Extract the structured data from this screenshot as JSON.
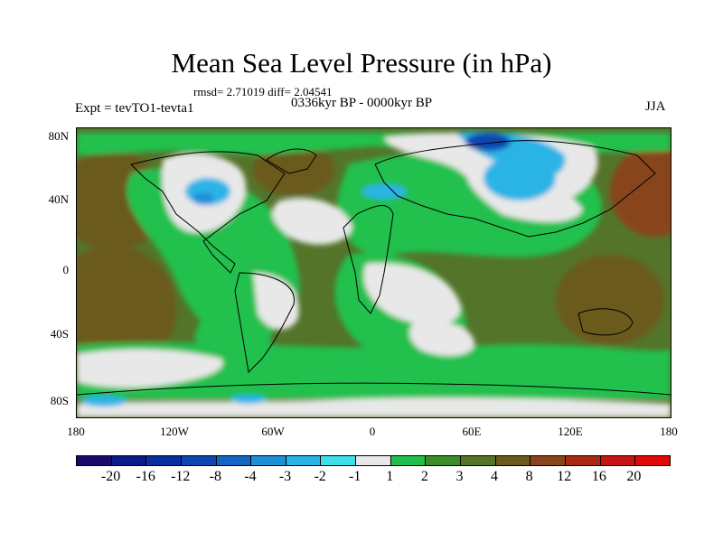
{
  "title": "Mean Sea Level Pressure (in hPa)",
  "stats": "rmsd= 2.71019 diff= 2.04541",
  "period": "0336kyr BP - 0000kyr BP",
  "experiment": "Expt = tevTO1-tevta1",
  "season": "JJA",
  "lat_labels": [
    "80N",
    "40N",
    "0",
    "40S",
    "80S"
  ],
  "lon_labels": [
    "180",
    "120W",
    "60W",
    "0",
    "60E",
    "120E",
    "180"
  ],
  "colorbar": {
    "labels": [
      "-20",
      "-16",
      "-12",
      "-8",
      "-4",
      "-3",
      "-2",
      "-1",
      "1",
      "2",
      "3",
      "4",
      "8",
      "12",
      "16",
      "20"
    ],
    "colors": [
      "#1a0a6e",
      "#0a1a8a",
      "#0a2e9e",
      "#0d46b0",
      "#1466c4",
      "#1e90d8",
      "#2ab4e6",
      "#3ee0ea",
      "#e8e8e8",
      "#21c04e",
      "#3c8c2a",
      "#54742a",
      "#6a5a1c",
      "#88441a",
      "#a82814",
      "#c81414",
      "#e00a0a"
    ]
  },
  "colors": {
    "ocean_base": "#54742a",
    "positive_low": "#21c04e",
    "near_zero": "#e8e8e8",
    "negative": "#2ab4e6",
    "strong_positive": "#6a5a1c"
  }
}
